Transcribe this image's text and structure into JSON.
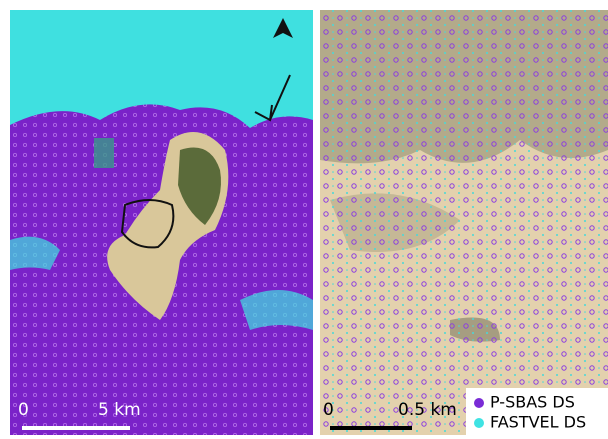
{
  "left_panel": {
    "scale_bar": {
      "start": "0",
      "end": "5 km"
    }
  },
  "right_panel": {
    "scale_bar": {
      "start": "0",
      "end": "0.5 km"
    }
  },
  "legend": {
    "items": [
      {
        "label": "P-SBAS DS",
        "color": "#7a2bd6"
      },
      {
        "label": "FASTVEL DS",
        "color": "#3fe3e3"
      }
    ]
  }
}
